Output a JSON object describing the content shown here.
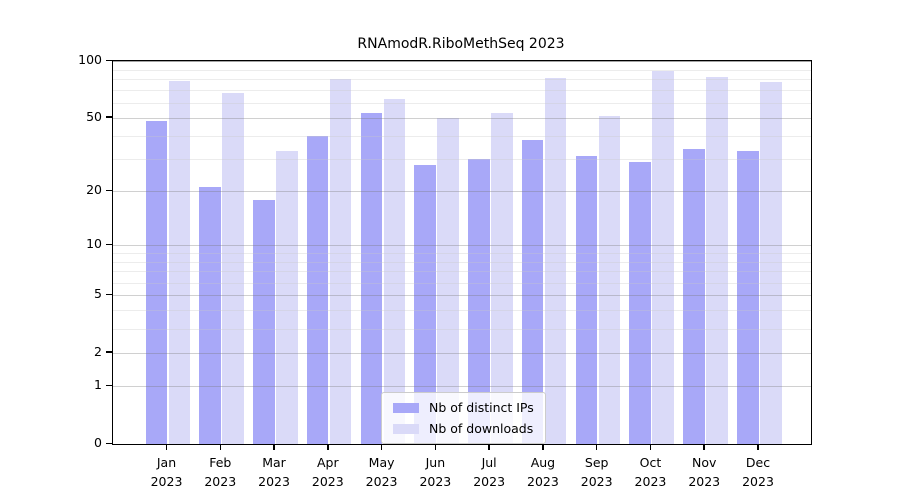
{
  "title": "RNAmodR.RiboMethSeq 2023",
  "chart_data": {
    "type": "bar",
    "title": "RNAmodR.RiboMethSeq 2023",
    "scale": "log1p",
    "categories": [
      "Jan",
      "Feb",
      "Mar",
      "Apr",
      "May",
      "Jun",
      "Jul",
      "Aug",
      "Sep",
      "Oct",
      "Nov",
      "Dec"
    ],
    "year_label": "2023",
    "series": [
      {
        "name": "Nb of distinct IPs",
        "color": "#a8a8f8",
        "values": [
          48,
          21,
          18,
          40,
          53,
          28,
          30,
          38,
          31,
          29,
          34,
          33
        ]
      },
      {
        "name": "Nb of downloads",
        "color": "#dadaf8",
        "values": [
          78,
          68,
          33,
          80,
          63,
          50,
          53,
          81,
          51,
          88,
          82,
          77
        ]
      }
    ],
    "yticks": [
      0,
      1,
      2,
      5,
      10,
      20,
      50,
      100
    ],
    "minor_gridlines": [
      3,
      4,
      6,
      7,
      8,
      9,
      30,
      40,
      60,
      70,
      80,
      90
    ],
    "ylim": [
      0,
      100
    ],
    "grid": true,
    "legend_position": "lower center"
  }
}
